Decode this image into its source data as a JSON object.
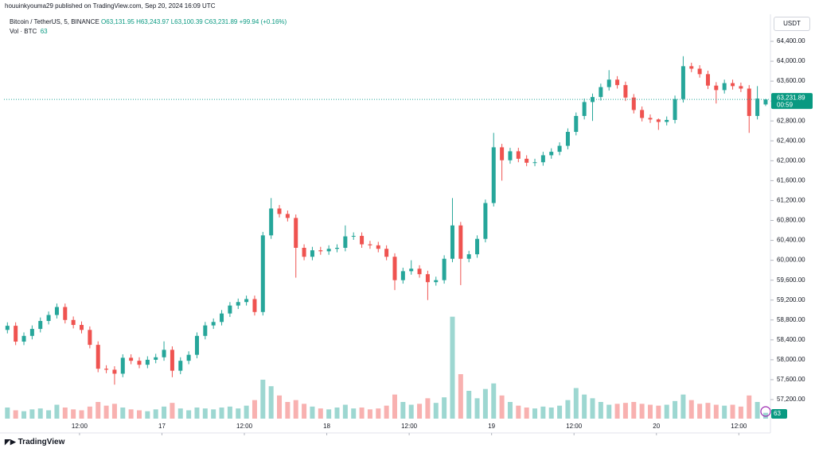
{
  "publisher": "houuinkyouma29 published on TradingView.com, Sep 20, 2024 16:09 UTC",
  "brand": "TradingView",
  "chart_data": {
    "type": "candlestick",
    "title": "Bitcoin / TetherUS, 5, BINANCE",
    "ohlc_labels": [
      "O63,131.95",
      "H63,243.97",
      "L63,100.39",
      "C63,231.89",
      "+99.94 (+0.16%)"
    ],
    "volume_title": "Vol · BTC",
    "volume_label": "63",
    "currency": "USDT",
    "price_label": "63,231.89",
    "countdown": "00:59",
    "up_color": "#26a69a",
    "down_color": "#ef5350",
    "x": [
      -22.5,
      -21.3,
      -20.1,
      -18.9,
      -17.7,
      -16.5,
      -15.3,
      -14.1,
      -12.9,
      -11.7,
      -10.5,
      -9.3,
      -8.1,
      -6.9,
      -5.7,
      -4.5,
      -3.3,
      -2.1,
      -0.9,
      0.3,
      1.5,
      2.7,
      3.9,
      5.1,
      6.3,
      7.5,
      8.7,
      9.9,
      11.1,
      12.3,
      13.5,
      14.7,
      15.9,
      17.1,
      18.3,
      19.5,
      20.7,
      21.9,
      23.1,
      24.3,
      25.5,
      26.7,
      27.9,
      29.1,
      30.3,
      31.5,
      32.7,
      33.9,
      35.1,
      36.3,
      37.5,
      38.7,
      39.9,
      41.1,
      42.3,
      43.5,
      44.7,
      45.9,
      47.1,
      48.3,
      49.5,
      50.7,
      51.9,
      53.1,
      54.3,
      55.5,
      56.7,
      57.9,
      59.1,
      60.3,
      61.5,
      62.7,
      63.9,
      65.1,
      66.3,
      67.5,
      68.7,
      69.9,
      71.1,
      72.3,
      73.5,
      74.7,
      75.9,
      77.1,
      78.3,
      79.5,
      80.7,
      81.9,
      83.1,
      84.3,
      85.5,
      86.7,
      87.9
    ],
    "open": [
      58600,
      58683,
      58365,
      58480,
      58620,
      58780,
      58900,
      59060,
      58800,
      58700,
      58600,
      58300,
      57820,
      57800,
      57720,
      58040,
      57980,
      57900,
      58000,
      58050,
      58200,
      57780,
      57980,
      58100,
      58480,
      58690,
      58760,
      58930,
      59090,
      59160,
      59220,
      58960,
      60500,
      61040,
      60930,
      60850,
      60250,
      60070,
      60200,
      60180,
      60230,
      60250,
      60480,
      60490,
      60320,
      60300,
      60230,
      60070,
      59600,
      59780,
      59830,
      59720,
      59560,
      59600,
      60030,
      60700,
      60030,
      60120,
      60430,
      61150,
      62270,
      62010,
      62190,
      62040,
      61960,
      61970,
      62110,
      62180,
      62300,
      62580,
      62900,
      63180,
      63280,
      63480,
      63630,
      63520,
      63270,
      63020,
      62860,
      62830,
      62780,
      62820,
      63240,
      63900,
      63850,
      63740,
      63510,
      63420,
      63560,
      63500,
      63450,
      62900,
      63131.95
    ],
    "high": [
      58753,
      58753,
      58550,
      58690,
      58850,
      58970,
      59130,
      59130,
      58870,
      58770,
      58670,
      58370,
      57890,
      57870,
      58110,
      58110,
      58050,
      58070,
      58120,
      58370,
      58270,
      58050,
      58170,
      58550,
      58760,
      58830,
      59000,
      59160,
      59230,
      59290,
      59290,
      60570,
      61250,
      61110,
      61000,
      60920,
      60320,
      60270,
      60270,
      60300,
      60320,
      60700,
      60560,
      60560,
      60390,
      60370,
      60300,
      60140,
      59850,
      60000,
      59900,
      59790,
      59670,
      60100,
      61250,
      60770,
      60190,
      60500,
      61220,
      62560,
      62340,
      62260,
      62260,
      62110,
      62040,
      62180,
      62250,
      62370,
      62650,
      62970,
      63250,
      63350,
      63550,
      63820,
      63700,
      63590,
      63340,
      63090,
      62930,
      62850,
      62890,
      63310,
      64100,
      63970,
      63920,
      63810,
      63580,
      63630,
      63630,
      63570,
      63520,
      63500,
      63243.97
    ],
    "low": [
      58530,
      58295,
      58295,
      58410,
      58550,
      58710,
      58830,
      58730,
      58630,
      58530,
      58230,
      57750,
      57730,
      57500,
      57650,
      57910,
      57830,
      57830,
      57930,
      57980,
      57650,
      57710,
      57910,
      58030,
      58410,
      58620,
      58690,
      58860,
      59020,
      59090,
      58890,
      58890,
      60430,
      60860,
      60780,
      59650,
      60000,
      60000,
      60110,
      60110,
      60160,
      60180,
      60410,
      60250,
      60230,
      60160,
      60000,
      59400,
      59530,
      59710,
      59650,
      59200,
      59490,
      59530,
      59960,
      59500,
      59960,
      60050,
      60360,
      61080,
      61600,
      61940,
      61970,
      61890,
      61890,
      61900,
      62040,
      62110,
      62230,
      62510,
      62830,
      62800,
      63210,
      63410,
      63450,
      63200,
      62950,
      62790,
      62760,
      62620,
      62710,
      62750,
      63170,
      63780,
      63670,
      63440,
      63150,
      63350,
      63430,
      63380,
      62560,
      62830,
      63100.39
    ],
    "close": [
      58683,
      58365,
      58480,
      58620,
      58780,
      58900,
      59060,
      58800,
      58700,
      58600,
      58300,
      57820,
      57800,
      57720,
      58040,
      57980,
      57900,
      58000,
      58050,
      58200,
      57780,
      57980,
      58100,
      58480,
      58690,
      58760,
      58930,
      59090,
      59160,
      59220,
      58960,
      60500,
      61040,
      60930,
      60850,
      60250,
      60070,
      60200,
      60180,
      60230,
      60250,
      60480,
      60490,
      60320,
      60300,
      60230,
      60070,
      59600,
      59780,
      59830,
      59720,
      59560,
      59600,
      60030,
      60700,
      60030,
      60120,
      60430,
      61150,
      62270,
      62010,
      62190,
      62040,
      61960,
      61970,
      62110,
      62180,
      62300,
      62580,
      62900,
      63180,
      63280,
      63480,
      63630,
      63520,
      63270,
      63020,
      62860,
      62830,
      62780,
      62820,
      63240,
      63900,
      63850,
      63740,
      63510,
      63420,
      63560,
      63500,
      63450,
      62900,
      63250,
      63231.89
    ],
    "volume": [
      120,
      90,
      80,
      100,
      110,
      90,
      150,
      120,
      100,
      90,
      130,
      180,
      140,
      160,
      120,
      100,
      90,
      80,
      100,
      130,
      170,
      110,
      90,
      120,
      110,
      100,
      120,
      130,
      110,
      140,
      200,
      420,
      350,
      250,
      180,
      200,
      160,
      130,
      110,
      100,
      120,
      150,
      110,
      120,
      100,
      110,
      140,
      260,
      180,
      150,
      160,
      220,
      170,
      230,
      1100,
      480,
      300,
      220,
      320,
      380,
      250,
      180,
      140,
      120,
      110,
      130,
      120,
      140,
      200,
      330,
      260,
      220,
      180,
      150,
      160,
      170,
      180,
      160,
      150,
      140,
      150,
      190,
      260,
      200,
      160,
      170,
      150,
      140,
      150,
      130,
      250,
      180,
      63
    ],
    "xlim": [
      -23,
      88.6
    ],
    "xticks": [
      {
        "value": -12,
        "label": "12:00"
      },
      {
        "value": 0,
        "label": "17"
      },
      {
        "value": 12,
        "label": "12:00"
      },
      {
        "value": 24,
        "label": "18"
      },
      {
        "value": 36,
        "label": "12:00"
      },
      {
        "value": 48,
        "label": "19"
      },
      {
        "value": 60,
        "label": "12:00"
      },
      {
        "value": 72,
        "label": "20"
      },
      {
        "value": 84,
        "label": "12:00"
      }
    ],
    "ylim": [
      56817,
      64943
    ],
    "yticks": [
      {
        "value": 57200,
        "label": "57,200.00"
      },
      {
        "value": 57600,
        "label": "57,600.00"
      },
      {
        "value": 58000,
        "label": "58,000.00"
      },
      {
        "value": 58400,
        "label": "58,400.00"
      },
      {
        "value": 58800,
        "label": "58,800.00"
      },
      {
        "value": 59200,
        "label": "59,200.00"
      },
      {
        "value": 59600,
        "label": "59,600.00"
      },
      {
        "value": 60000,
        "label": "60,000.00"
      },
      {
        "value": 60400,
        "label": "60,400.00"
      },
      {
        "value": 60800,
        "label": "60,800.00"
      },
      {
        "value": 61200,
        "label": "61,200.00"
      },
      {
        "value": 61600,
        "label": "61,600.00"
      },
      {
        "value": 62000,
        "label": "62,000.00"
      },
      {
        "value": 62400,
        "label": "62,400.00"
      },
      {
        "value": 62800,
        "label": "62,800.00"
      },
      {
        "value": 63200,
        "label": "63,200.00"
      },
      {
        "value": 63600,
        "label": "63,600.00"
      },
      {
        "value": 64000,
        "label": "64,000.00"
      },
      {
        "value": 64400,
        "label": "64,400.00"
      }
    ],
    "volume_ylim": [
      0,
      1200
    ],
    "grid": false
  }
}
